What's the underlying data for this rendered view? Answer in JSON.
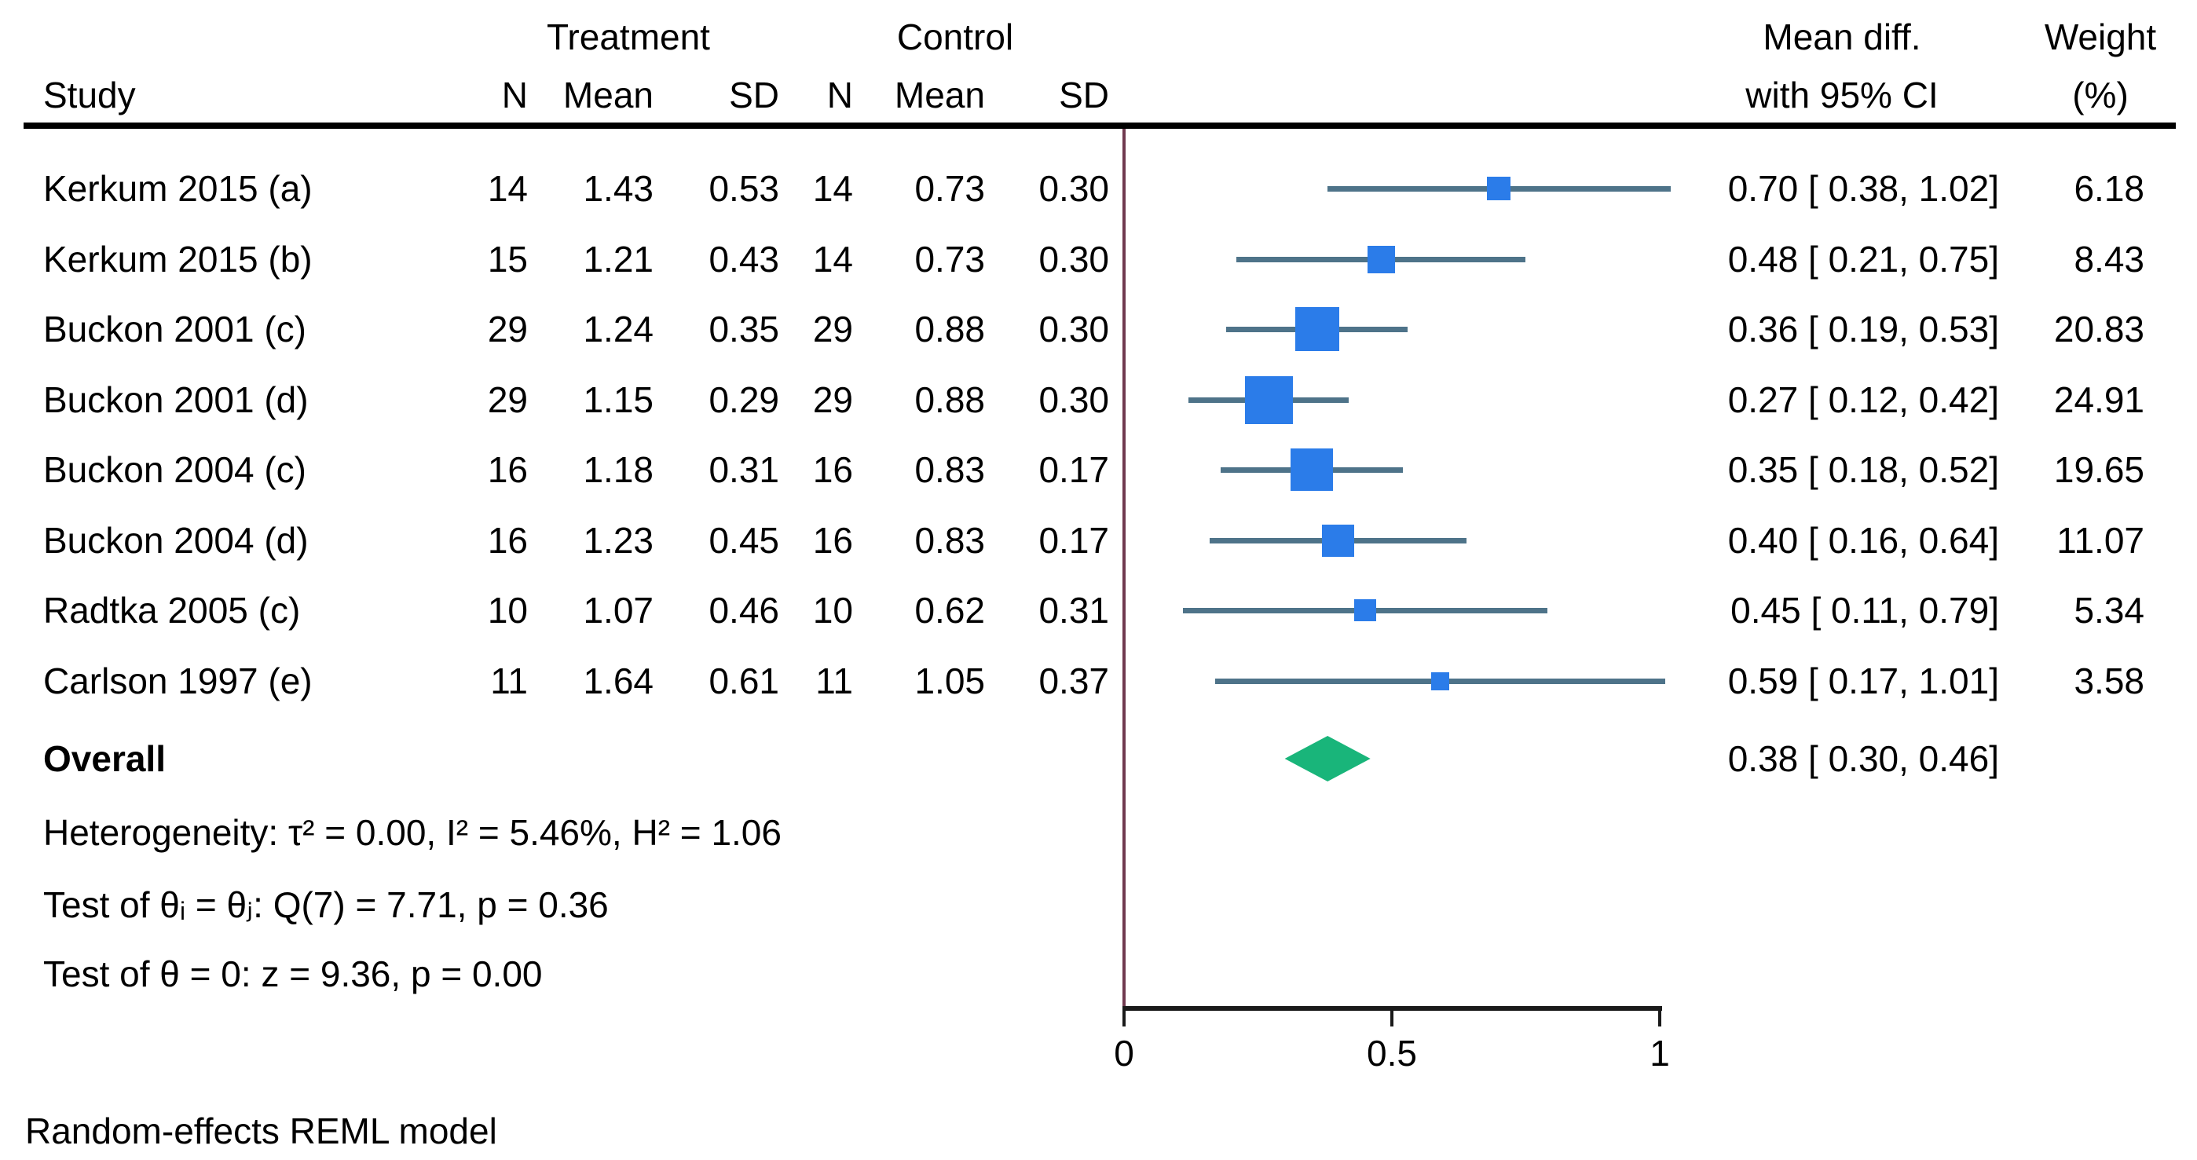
{
  "header": {
    "study": "Study",
    "group_treatment": "Treatment",
    "group_control": "Control",
    "cols": [
      "N",
      "Mean",
      "SD",
      "N",
      "Mean",
      "SD"
    ],
    "effect_line1": "Mean diff.",
    "effect_line2": "with 95% CI",
    "weight_line1": "Weight",
    "weight_line2": "(%)"
  },
  "chart_data": {
    "type": "forest",
    "effect_measure": "Mean diff.",
    "axis_range": [
      0,
      1
    ],
    "x_ticks": [
      {
        "value": 0,
        "label": "0"
      },
      {
        "value": 0.5,
        "label": "0.5"
      },
      {
        "value": 1,
        "label": "1"
      }
    ],
    "reference_line_x": 0,
    "studies": [
      {
        "name": "Kerkum 2015 (a)",
        "t_n": "14",
        "t_mean": "1.43",
        "t_sd": "0.53",
        "c_n": "14",
        "c_mean": "0.73",
        "c_sd": "0.30",
        "est": 0.7,
        "lo": 0.38,
        "hi": 1.02,
        "ci_label": "0.70 [ 0.38,  1.02]",
        "weight": "6.18"
      },
      {
        "name": "Kerkum 2015 (b)",
        "t_n": "15",
        "t_mean": "1.21",
        "t_sd": "0.43",
        "c_n": "14",
        "c_mean": "0.73",
        "c_sd": "0.30",
        "est": 0.48,
        "lo": 0.21,
        "hi": 0.75,
        "ci_label": "0.48 [ 0.21,  0.75]",
        "weight": "8.43"
      },
      {
        "name": "Buckon 2001 (c)",
        "t_n": "29",
        "t_mean": "1.24",
        "t_sd": "0.35",
        "c_n": "29",
        "c_mean": "0.88",
        "c_sd": "0.30",
        "est": 0.36,
        "lo": 0.19,
        "hi": 0.53,
        "ci_label": "0.36 [ 0.19,  0.53]",
        "weight": "20.83"
      },
      {
        "name": "Buckon 2001 (d)",
        "t_n": "29",
        "t_mean": "1.15",
        "t_sd": "0.29",
        "c_n": "29",
        "c_mean": "0.88",
        "c_sd": "0.30",
        "est": 0.27,
        "lo": 0.12,
        "hi": 0.42,
        "ci_label": "0.27 [ 0.12,  0.42]",
        "weight": "24.91"
      },
      {
        "name": "Buckon 2004 (c)",
        "t_n": "16",
        "t_mean": "1.18",
        "t_sd": "0.31",
        "c_n": "16",
        "c_mean": "0.83",
        "c_sd": "0.17",
        "est": 0.35,
        "lo": 0.18,
        "hi": 0.52,
        "ci_label": "0.35 [ 0.18,  0.52]",
        "weight": "19.65"
      },
      {
        "name": "Buckon 2004 (d)",
        "t_n": "16",
        "t_mean": "1.23",
        "t_sd": "0.45",
        "c_n": "16",
        "c_mean": "0.83",
        "c_sd": "0.17",
        "est": 0.4,
        "lo": 0.16,
        "hi": 0.64,
        "ci_label": "0.40 [ 0.16,  0.64]",
        "weight": "11.07"
      },
      {
        "name": "Radtka 2005 (c)",
        "t_n": "10",
        "t_mean": "1.07",
        "t_sd": "0.46",
        "c_n": "10",
        "c_mean": "0.62",
        "c_sd": "0.31",
        "est": 0.45,
        "lo": 0.11,
        "hi": 0.79,
        "ci_label": "0.45 [ 0.11,  0.79]",
        "weight": "5.34"
      },
      {
        "name": "Carlson 1997 (e)",
        "t_n": "11",
        "t_mean": "1.64",
        "t_sd": "0.61",
        "c_n": "11",
        "c_mean": "1.05",
        "c_sd": "0.37",
        "est": 0.59,
        "lo": 0.17,
        "hi": 1.01,
        "ci_label": "0.59 [ 0.17,  1.01]",
        "weight": "3.58"
      }
    ],
    "overall": {
      "label": "Overall",
      "est": 0.38,
      "lo": 0.3,
      "hi": 0.46,
      "ci_label": "0.38 [ 0.30,  0.46]"
    }
  },
  "stats": {
    "heterogeneity": "Heterogeneity: τ² = 0.00, I² = 5.46%, H² = 1.06",
    "test_q": "Test of θᵢ = θⱼ: Q(7) = 7.71, p = 0.36",
    "test_z": "Test of θ = 0: z = 9.36, p = 0.00"
  },
  "footer": {
    "model": "Random-effects REML model"
  },
  "colors": {
    "marker": "#2b7ce9",
    "ci_line": "#4e7389",
    "diamond": "#19b57a",
    "reference_line": "#70394f",
    "axis": "#1a1a1a",
    "text": "#000000"
  }
}
